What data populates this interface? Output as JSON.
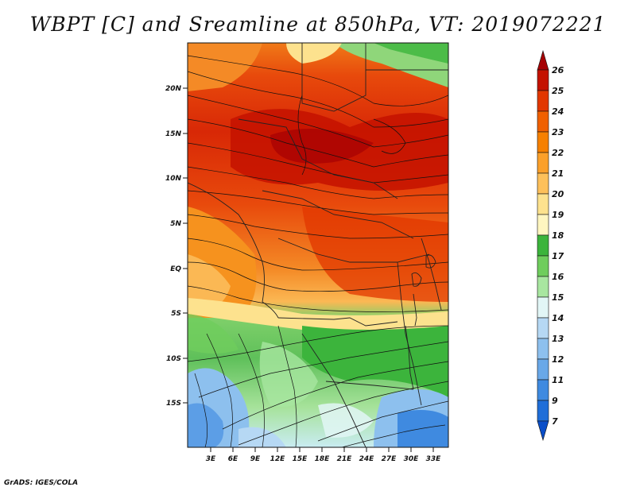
{
  "title": "WBPT [C] and Sreamline at 850hPa, VT: 2019072221",
  "footer": "GrADS: IGES/COLA",
  "axes": {
    "y_ticks": [
      "20N",
      "15N",
      "10N",
      "5N",
      "EQ",
      "5S",
      "10S",
      "15S"
    ],
    "x_ticks": [
      "3E",
      "6E",
      "9E",
      "12E",
      "15E",
      "18E",
      "21E",
      "24E",
      "27E",
      "30E",
      "33E"
    ]
  },
  "colorbar": {
    "labels": [
      "26",
      "25",
      "24",
      "23",
      "22",
      "21",
      "20",
      "19",
      "18",
      "17",
      "16",
      "15",
      "14",
      "13",
      "12",
      "11",
      "9",
      "7"
    ],
    "colors": [
      "#a50003",
      "#c41200",
      "#e23700",
      "#f06000",
      "#f68000",
      "#fba02a",
      "#fdc05a",
      "#fde28e",
      "#fff6c0",
      "#3cb43c",
      "#6fcd5d",
      "#a8e6a0",
      "#e2f6f6",
      "#b6d8f4",
      "#8dc0ee",
      "#69a8e8",
      "#3f8ae0",
      "#1f6ed8",
      "#0a4ec8"
    ]
  }
}
